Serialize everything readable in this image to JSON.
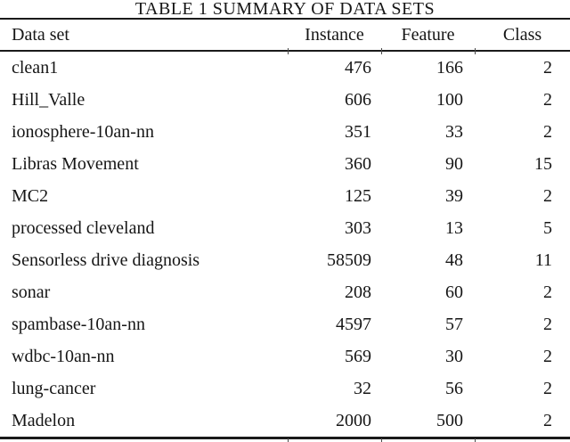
{
  "title": "TABLE 1 SUMMARY OF DATA SETS",
  "table": {
    "columns": [
      "Data set",
      "Instance",
      "Feature",
      "Class"
    ],
    "rows": [
      {
        "dataset": "clean1",
        "instance": "476",
        "feature": "166",
        "class": "2"
      },
      {
        "dataset": "Hill_Valle",
        "instance": "606",
        "feature": "100",
        "class": "2"
      },
      {
        "dataset": "ionosphere-10an-nn",
        "instance": "351",
        "feature": "33",
        "class": "2"
      },
      {
        "dataset": "Libras Movement",
        "instance": "360",
        "feature": "90",
        "class": "15"
      },
      {
        "dataset": "MC2",
        "instance": "125",
        "feature": "39",
        "class": "2"
      },
      {
        "dataset": "processed cleveland",
        "instance": "303",
        "feature": "13",
        "class": "5"
      },
      {
        "dataset": "Sensorless drive diagnosis",
        "instance": "58509",
        "feature": "48",
        "class": "11"
      },
      {
        "dataset": "sonar",
        "instance": "208",
        "feature": "60",
        "class": "2"
      },
      {
        "dataset": "spambase-10an-nn",
        "instance": "4597",
        "feature": "57",
        "class": "2"
      },
      {
        "dataset": "wdbc-10an-nn",
        "instance": "569",
        "feature": "30",
        "class": "2"
      },
      {
        "dataset": "lung-cancer",
        "instance": "32",
        "feature": "56",
        "class": "2"
      },
      {
        "dataset": "Madelon",
        "instance": "2000",
        "feature": "500",
        "class": "2"
      }
    ]
  },
  "colors": {
    "background": "#ffffff",
    "text": "#161616",
    "rule": "#1a1a1a"
  }
}
